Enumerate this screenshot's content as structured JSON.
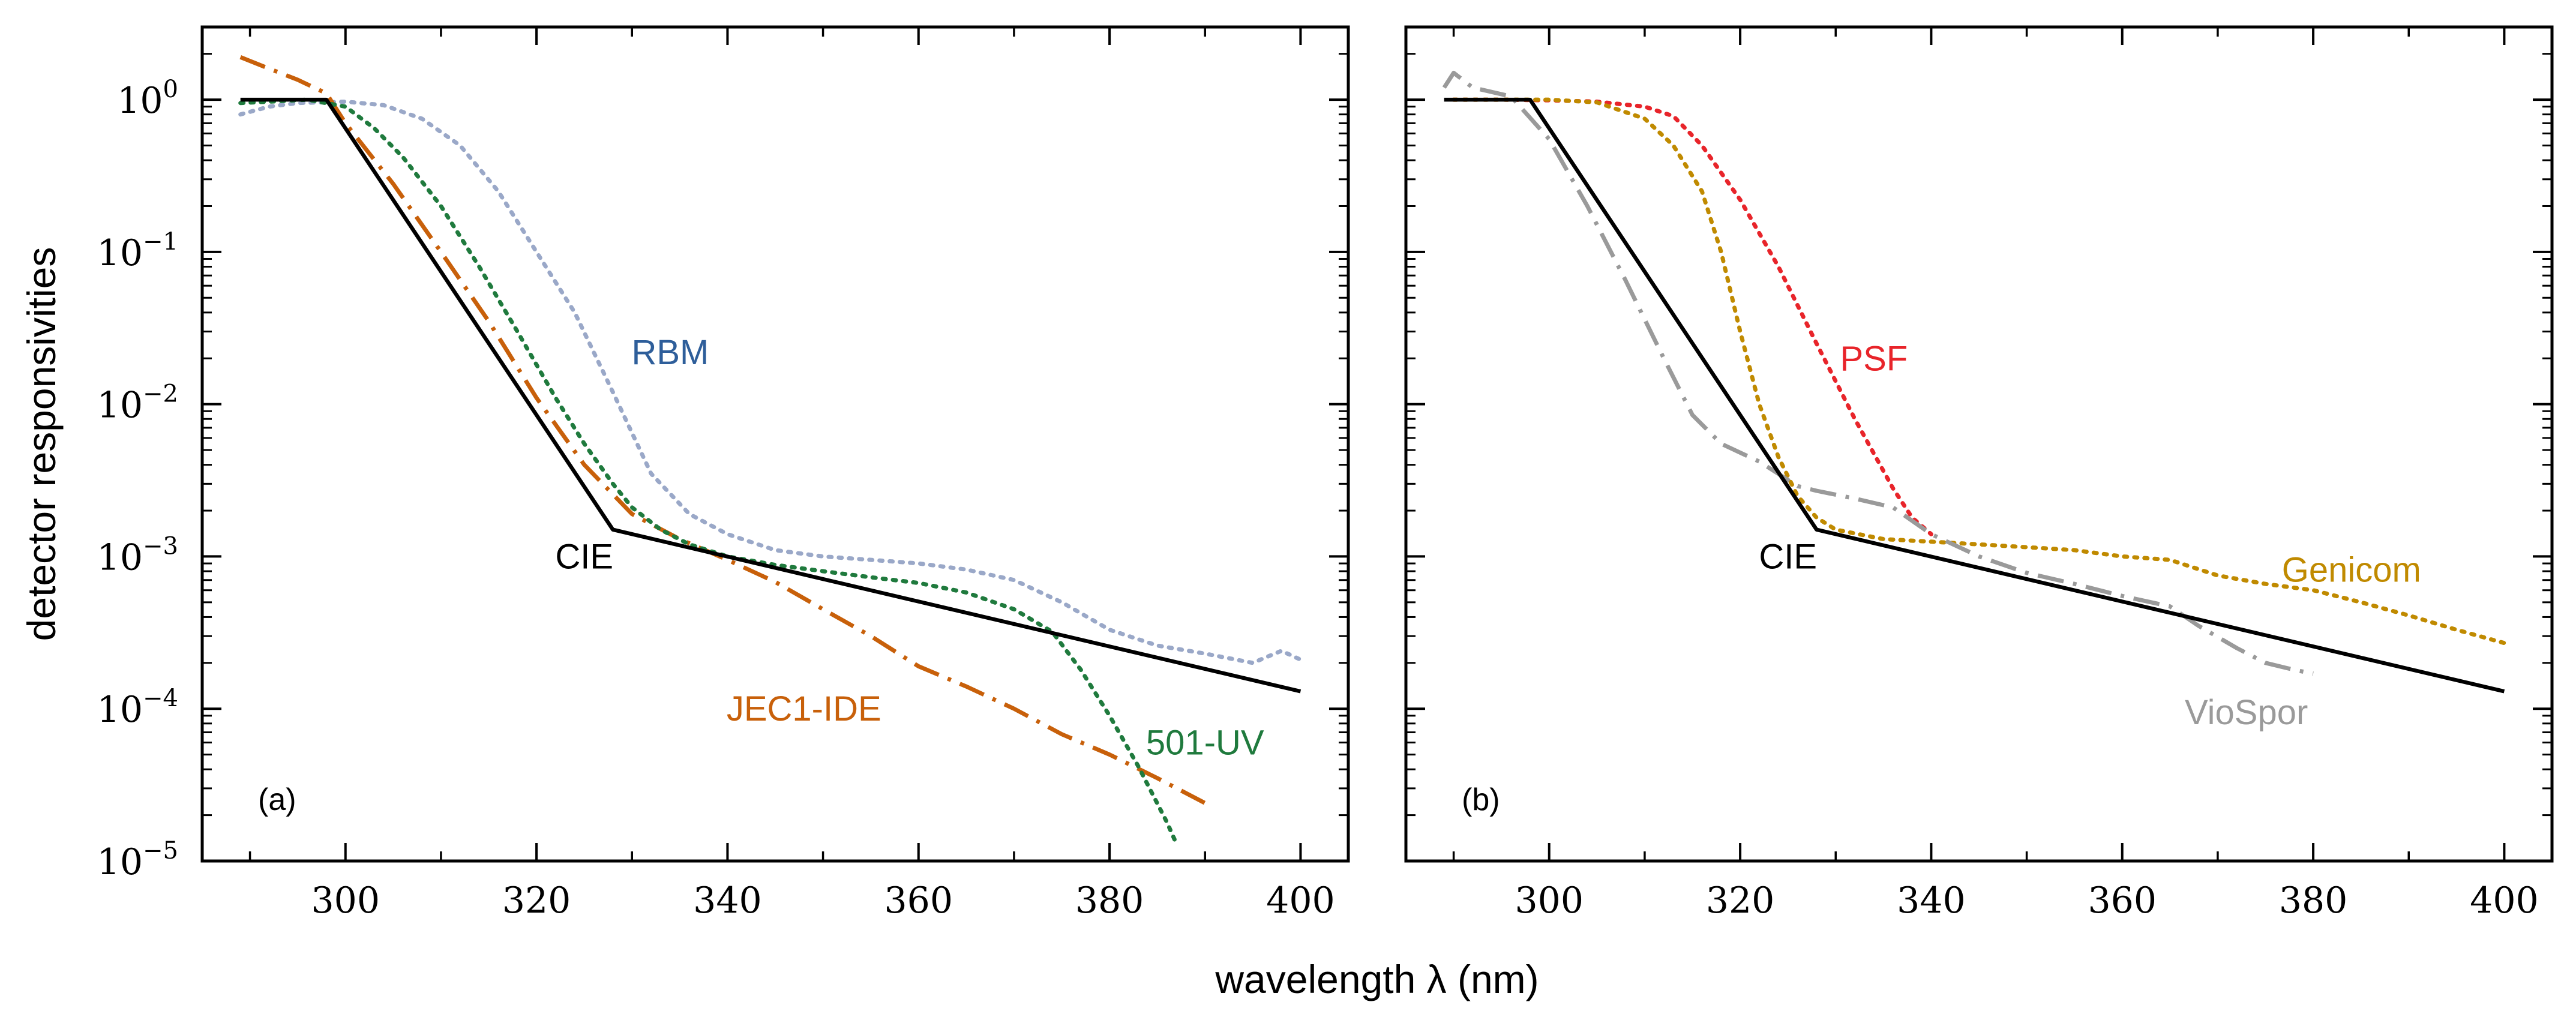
{
  "chart_data": [
    {
      "type": "line",
      "panel_label": "(a)",
      "xlabel": "wavelength λ (nm)",
      "ylabel": "detector responsivities",
      "xlim": [
        285,
        405
      ],
      "ylim": [
        1e-05,
        3
      ],
      "yscale": "log",
      "x_ticks": [
        300,
        320,
        340,
        360,
        380,
        400
      ],
      "x_tick_labels": [
        "300",
        "320",
        "340",
        "360",
        "380",
        "400"
      ],
      "y_tick_labels": [
        {
          "base": "10",
          "exp": "0"
        },
        {
          "base": "10",
          "exp": "−1"
        },
        {
          "base": "10",
          "exp": "−2"
        },
        {
          "base": "10",
          "exp": "−3"
        },
        {
          "base": "10",
          "exp": "−4"
        },
        {
          "base": "10",
          "exp": "−5"
        }
      ],
      "series": [
        {
          "name": "RBM",
          "color": "#9aa8c8",
          "style": "dotted",
          "label_color": "#2e5e9a",
          "x": [
            289,
            292,
            295,
            300,
            304,
            308,
            312,
            316,
            320,
            324,
            328,
            332,
            336,
            340,
            345,
            350,
            355,
            360,
            365,
            370,
            375,
            380,
            385,
            390,
            395,
            398,
            400
          ],
          "y": [
            0.8,
            0.9,
            0.95,
            0.97,
            0.92,
            0.75,
            0.5,
            0.25,
            0.1,
            0.04,
            0.012,
            0.0035,
            0.0019,
            0.0014,
            0.0011,
            0.001,
            0.00095,
            0.0009,
            0.00082,
            0.0007,
            0.0005,
            0.00033,
            0.00026,
            0.00023,
            0.0002,
            0.00024,
            0.00021
          ]
        },
        {
          "name": "JEC1-IDE",
          "color": "#c8600a",
          "style": "dashdot",
          "label_color": "#c8600a",
          "x": [
            289,
            292,
            295,
            298,
            300,
            305,
            310,
            315,
            320,
            325,
            330,
            335,
            340,
            345,
            350,
            355,
            360,
            365,
            370,
            375,
            380,
            385,
            390
          ],
          "y": [
            1.9,
            1.6,
            1.35,
            1.1,
            0.7,
            0.28,
            0.1,
            0.035,
            0.011,
            0.004,
            0.0019,
            0.0013,
            0.00095,
            0.00068,
            0.00045,
            0.0003,
            0.00019,
            0.00014,
            0.0001,
            6.8e-05,
            5e-05,
            3.5e-05,
            2.4e-05
          ]
        },
        {
          "name": "501-UV",
          "color": "#1f7a3d",
          "style": "dotted",
          "label_color": "#1f7a3d",
          "x": [
            289,
            292,
            296,
            300,
            303,
            306,
            310,
            314,
            318,
            322,
            325,
            328,
            330,
            333,
            336,
            340,
            345,
            350,
            355,
            360,
            365,
            370,
            374,
            377,
            380,
            383,
            386,
            387
          ],
          "y": [
            0.95,
            0.97,
            1.0,
            0.9,
            0.65,
            0.42,
            0.2,
            0.08,
            0.03,
            0.011,
            0.0055,
            0.003,
            0.0021,
            0.0015,
            0.0012,
            0.001,
            0.00088,
            0.0008,
            0.00073,
            0.00067,
            0.00058,
            0.00045,
            0.00032,
            0.00018,
            9e-05,
            4.2e-05,
            1.8e-05,
            1.3e-05
          ]
        },
        {
          "name": "CIE",
          "color": "#000000",
          "style": "solid",
          "label_color": "#000000",
          "x": [
            289,
            298,
            328,
            400
          ],
          "y": [
            1,
            1,
            0.0015,
            0.00013
          ]
        }
      ],
      "annotations": [
        {
          "text": "RBM",
          "x": 334,
          "y": 0.022
        },
        {
          "text": "CIE",
          "x": 325,
          "y": 0.001
        },
        {
          "text": "JEC1-IDE",
          "x": 348,
          "y": 0.0001
        },
        {
          "text": "501-UV",
          "x": 390,
          "y": 6e-05
        }
      ]
    },
    {
      "type": "line",
      "panel_label": "(b)",
      "xlabel": "wavelength λ (nm)",
      "xlim": [
        285,
        405
      ],
      "ylim": [
        1e-05,
        3
      ],
      "yscale": "log",
      "x_ticks": [
        300,
        320,
        340,
        360,
        380,
        400
      ],
      "x_tick_labels": [
        "300",
        "320",
        "340",
        "360",
        "380",
        "400"
      ],
      "series": [
        {
          "name": "PSF",
          "color": "#e8242a",
          "style": "dotted",
          "label_color": "#e8242a",
          "x": [
            290,
            295,
            300,
            305,
            310,
            313,
            316,
            320,
            324,
            328,
            332,
            336,
            338,
            340
          ],
          "y": [
            1.0,
            1.0,
            0.99,
            0.97,
            0.9,
            0.78,
            0.5,
            0.22,
            0.08,
            0.025,
            0.008,
            0.0028,
            0.0018,
            0.0014
          ]
        },
        {
          "name": "Genicom",
          "color": "#c08a00",
          "style": "dotted",
          "label_color": "#c08a00",
          "x": [
            290,
            295,
            300,
            305,
            310,
            313,
            316,
            318,
            320,
            322,
            324,
            326,
            328,
            330,
            335,
            340,
            345,
            350,
            355,
            360,
            365,
            370,
            375,
            380,
            385,
            390,
            395,
            400
          ],
          "y": [
            1.0,
            1.0,
            1.0,
            0.96,
            0.75,
            0.5,
            0.25,
            0.1,
            0.03,
            0.01,
            0.0045,
            0.0025,
            0.0018,
            0.0015,
            0.0013,
            0.00125,
            0.0012,
            0.00115,
            0.0011,
            0.001,
            0.00095,
            0.00075,
            0.00066,
            0.0006,
            0.0005,
            0.00041,
            0.00033,
            0.00027
          ]
        },
        {
          "name": "VioSpor",
          "color": "#9a9a9a",
          "style": "dashdot",
          "label_color": "#9a9a9a",
          "x": [
            289,
            290,
            292,
            296,
            300,
            304,
            308,
            312,
            315,
            318,
            322,
            326,
            328,
            332,
            336,
            340,
            345,
            350,
            355,
            360,
            365,
            368,
            372,
            375,
            378,
            380
          ],
          "y": [
            1.2,
            1.5,
            1.2,
            1.05,
            0.55,
            0.2,
            0.065,
            0.02,
            0.0085,
            0.0055,
            0.0042,
            0.0029,
            0.0027,
            0.0024,
            0.0021,
            0.0014,
            0.001,
            0.00078,
            0.00066,
            0.00055,
            0.00047,
            0.00035,
            0.00025,
            0.0002,
            0.00018,
            0.00017
          ]
        },
        {
          "name": "CIE",
          "color": "#000000",
          "style": "solid",
          "label_color": "#000000",
          "x": [
            289,
            298,
            328,
            400
          ],
          "y": [
            1,
            1,
            0.0015,
            0.00013
          ]
        }
      ],
      "annotations": [
        {
          "text": "PSF",
          "x": 334,
          "y": 0.02
        },
        {
          "text": "CIE",
          "x": 325,
          "y": 0.001
        },
        {
          "text": "Genicom",
          "x": 384,
          "y": 0.00082
        },
        {
          "text": "VioSpor",
          "x": 373,
          "y": 9.5e-05
        }
      ]
    }
  ]
}
